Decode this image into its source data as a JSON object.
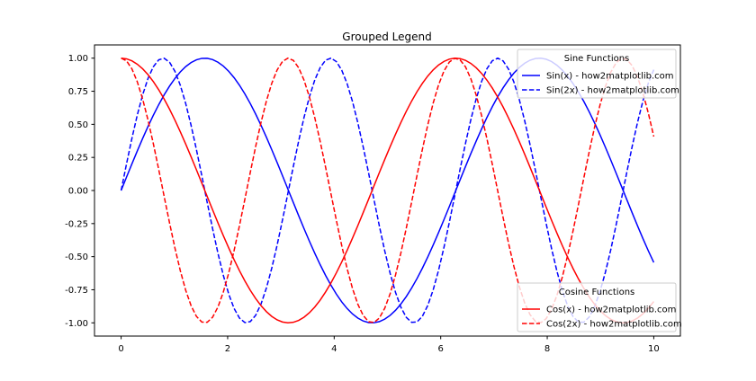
{
  "chart_data": {
    "type": "line",
    "title": "Grouped Legend",
    "xlabel": "",
    "ylabel": "",
    "xlim": [
      -0.5,
      10.5
    ],
    "ylim": [
      -1.1,
      1.1
    ],
    "grid": false,
    "x_domain": [
      0,
      10
    ],
    "n_points": 100,
    "xticks": [
      0,
      2,
      4,
      6,
      8,
      10
    ],
    "xtick_labels": [
      "0",
      "2",
      "4",
      "6",
      "8",
      "10"
    ],
    "yticks": [
      1.0,
      0.75,
      0.5,
      0.25,
      0.0,
      -0.25,
      -0.5,
      -0.75,
      -1.0
    ],
    "ytick_labels": [
      "1.00",
      "0.75",
      "0.50",
      "0.25",
      "0.00",
      "-0.25",
      "-0.50",
      "-0.75",
      "-1.00"
    ],
    "series": [
      {
        "name": "Sin(x) - how2matplotlib.com",
        "func": "sin",
        "freq": 1,
        "color": "#0000ff",
        "dash": "solid"
      },
      {
        "name": "Sin(2x) - how2matplotlib.com",
        "func": "sin",
        "freq": 2,
        "color": "#0000ff",
        "dash": "dashed"
      },
      {
        "name": "Cos(x) - how2matplotlib.com",
        "func": "cos",
        "freq": 1,
        "color": "#ff0000",
        "dash": "solid"
      },
      {
        "name": "Cos(2x) - how2matplotlib.com",
        "func": "cos",
        "freq": 2,
        "color": "#ff0000",
        "dash": "dashed"
      }
    ],
    "legends": [
      {
        "title": "Sine Functions",
        "placement": "upper-right",
        "series_idx": [
          0,
          1
        ]
      },
      {
        "title": "Cosine Functions",
        "placement": "lower-right",
        "series_idx": [
          2,
          3
        ]
      }
    ]
  }
}
